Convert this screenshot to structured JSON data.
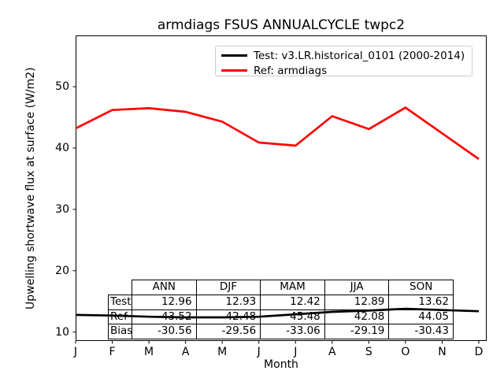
{
  "title": "armdiags FSUS ANNUALCYCLE twpc2",
  "legend": {
    "items": [
      {
        "label": "Test: v3.LR.historical_0101 (2000-2014)",
        "color": "#000000"
      },
      {
        "label": "Ref: armdiags",
        "color": "#ff0000"
      }
    ]
  },
  "chart_data": {
    "type": "line",
    "title": "armdiags FSUS ANNUALCYCLE twpc2",
    "xlabel": "Month",
    "ylabel": "Upwelling shortwave flux at surface (W/m2)",
    "x_tick_labels": [
      "J",
      "F",
      "M",
      "A",
      "M",
      "J",
      "J",
      "A",
      "S",
      "O",
      "N",
      "D"
    ],
    "y_ticks": [
      10,
      20,
      30,
      40,
      50
    ],
    "ylim": [
      8.5,
      58.4
    ],
    "grid": false,
    "legend_position": "upper center inside axes",
    "series": [
      {
        "name": "Test: v3.LR.historical_0101 (2000-2014)",
        "color": "#000000",
        "values": [
          12.8,
          12.7,
          12.5,
          12.4,
          12.4,
          12.5,
          12.9,
          13.3,
          13.5,
          13.8,
          13.6,
          13.4
        ]
      },
      {
        "name": "Ref: armdiags",
        "color": "#ff0000",
        "values": [
          43.2,
          46.2,
          46.5,
          45.9,
          44.3,
          40.9,
          40.4,
          45.2,
          43.1,
          46.6,
          42.4,
          38.2
        ]
      }
    ]
  },
  "stats_table": {
    "col_headers": [
      "ANN",
      "DJF",
      "MAM",
      "JJA",
      "SON"
    ],
    "rows": [
      {
        "label": "Test",
        "values": [
          "12.96",
          "12.93",
          "12.42",
          "12.89",
          "13.62"
        ]
      },
      {
        "label": "Ref",
        "values": [
          "43.52",
          "42.48",
          "45.48",
          "42.08",
          "44.05"
        ]
      },
      {
        "label": "Bias",
        "values": [
          "-30.56",
          "-29.56",
          "-33.06",
          "-29.19",
          "-30.43"
        ]
      }
    ]
  }
}
